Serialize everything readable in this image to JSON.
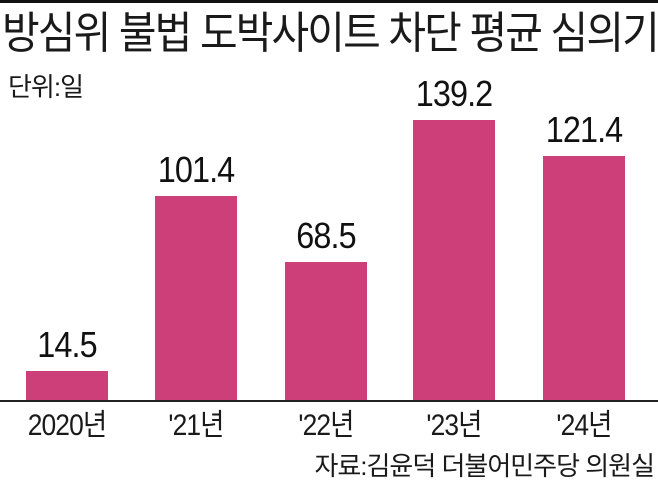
{
  "title": "방심위 불법 도박사이트 차단 평균 심의기간",
  "unit_label": "단위:일",
  "source": "자료:김윤덕 더불어민주당 의원실",
  "colors": {
    "bar": "#cc3f78",
    "text": "#1a1a1a",
    "axis": "#222222"
  },
  "chart_data": {
    "type": "bar",
    "title": "방심위 불법 도박사이트 차단 평균 심의기간",
    "xlabel": "",
    "ylabel": "단위:일",
    "categories": [
      "2020년",
      "'21년",
      "'22년",
      "'23년",
      "'24년"
    ],
    "values": [
      14.5,
      101.4,
      68.5,
      139.2,
      121.4
    ],
    "value_labels": [
      "14.5",
      "101.4",
      "68.5",
      "139.2",
      "121.4"
    ],
    "ylim": [
      0,
      140
    ],
    "grid": false,
    "legend": null,
    "source": "자료:김윤덕 더불어민주당 의원실"
  }
}
